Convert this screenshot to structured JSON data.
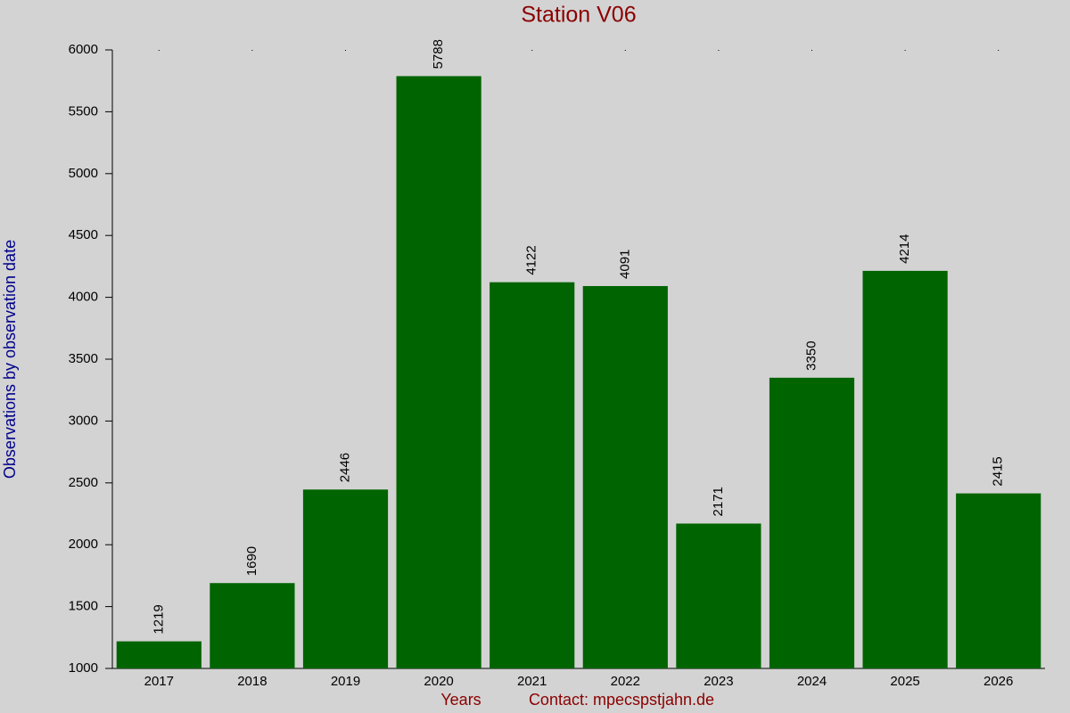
{
  "chart_data": {
    "type": "bar",
    "title": "Station V06",
    "y_label": "Observations by observation date",
    "x_label": "Years",
    "contact": "Contact: mpecspstjahn.de",
    "categories": [
      "2017",
      "2018",
      "2019",
      "2020",
      "2021",
      "2022",
      "2023",
      "2024",
      "2025",
      "2026"
    ],
    "values": [
      1219,
      1690,
      2446,
      5788,
      4122,
      4091,
      2171,
      3350,
      4214,
      2415
    ],
    "color": "#006400",
    "ylim": [
      1000,
      6000
    ],
    "yticks": [
      1000,
      1500,
      2000,
      2500,
      3000,
      3500,
      4000,
      4500,
      5000,
      5500,
      6000
    ],
    "grid": false
  }
}
